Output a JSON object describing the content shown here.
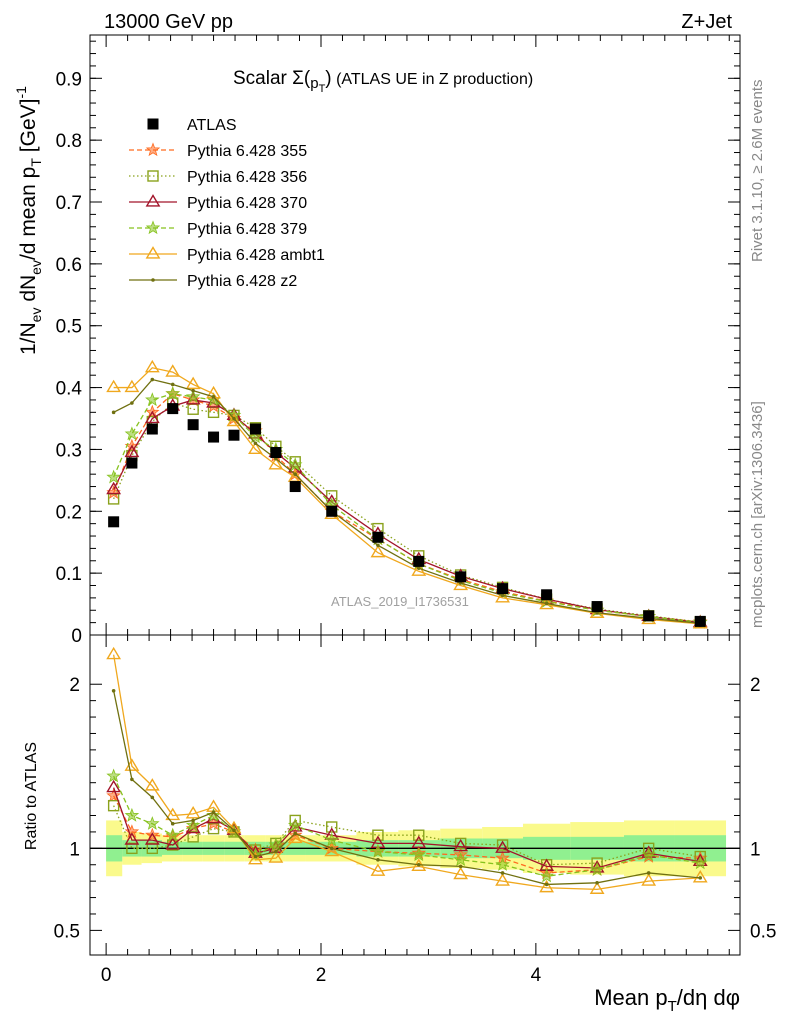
{
  "header": {
    "left": "13000 GeV pp",
    "right": "Z+Jet"
  },
  "side_texts": {
    "rivet": "Rivet 3.1.10, ≥ 2.6M events",
    "mcplots": "mcplots.cern.ch [arXiv:1306.3436]"
  },
  "watermark": "ATLAS_2019_I1736531",
  "chart_data": [
    {
      "type": "scatter",
      "title": "Scalar Σ(p_T) (ATLAS UE in Z production)",
      "ylabel": "1/N_ev dN_ev/d mean p_T [GeV]^-1",
      "xlim": [
        -0.15,
        5.9
      ],
      "ylim": [
        0,
        0.97
      ],
      "yticks": [
        "0",
        "0.1",
        "0.2",
        "0.3",
        "0.4",
        "0.5",
        "0.6",
        "0.7",
        "0.8",
        "0.9"
      ],
      "legend_position": "top-left",
      "x": [
        0.07,
        0.24,
        0.43,
        0.62,
        0.81,
        1.0,
        1.19,
        1.39,
        1.58,
        1.76,
        2.1,
        2.53,
        2.91,
        3.3,
        3.69,
        4.1,
        4.57,
        5.05,
        5.53
      ],
      "series": [
        {
          "name": "ATLAS",
          "color": "#000000",
          "marker": "square",
          "line": "none",
          "values": [
            0.183,
            0.278,
            0.333,
            0.366,
            0.34,
            0.32,
            0.323,
            0.333,
            0.295,
            0.24,
            0.2,
            0.158,
            0.119,
            0.094,
            0.075,
            0.065,
            0.046,
            0.031,
            0.022
          ]
        },
        {
          "name": "Pythia 6.428 355",
          "color": "#ff6a1f",
          "marker": "star",
          "line": "dashed",
          "values": [
            0.23,
            0.305,
            0.36,
            0.39,
            0.38,
            0.37,
            0.35,
            0.33,
            0.29,
            0.26,
            0.2,
            0.155,
            0.115,
            0.09,
            0.07,
            0.055,
            0.04,
            0.03,
            0.021
          ]
        },
        {
          "name": "Pythia 6.428 356",
          "color": "#8aa21c",
          "marker": "square-open",
          "line": "dotted",
          "values": [
            0.22,
            0.29,
            0.345,
            0.375,
            0.365,
            0.36,
            0.355,
            0.335,
            0.305,
            0.28,
            0.225,
            0.172,
            0.128,
            0.097,
            0.077,
            0.058,
            0.042,
            0.031,
            0.021
          ]
        },
        {
          "name": "Pythia 6.428 370",
          "color": "#a2142a",
          "marker": "triangle-open",
          "line": "solid",
          "values": [
            0.235,
            0.295,
            0.35,
            0.37,
            0.38,
            0.375,
            0.355,
            0.325,
            0.295,
            0.27,
            0.215,
            0.163,
            0.122,
            0.095,
            0.075,
            0.058,
            0.041,
            0.03,
            0.02
          ]
        },
        {
          "name": "Pythia 6.428 379",
          "color": "#86c21e",
          "marker": "star",
          "line": "dashed",
          "values": [
            0.255,
            0.325,
            0.38,
            0.39,
            0.385,
            0.38,
            0.355,
            0.32,
            0.3,
            0.275,
            0.21,
            0.155,
            0.115,
            0.088,
            0.068,
            0.054,
            0.04,
            0.03,
            0.02
          ]
        },
        {
          "name": "Pythia 6.428 ambt1",
          "color": "#f0a81e",
          "marker": "triangle-open",
          "line": "solid",
          "values": [
            0.4,
            0.4,
            0.432,
            0.425,
            0.405,
            0.39,
            0.345,
            0.3,
            0.275,
            0.255,
            0.195,
            0.133,
            0.103,
            0.08,
            0.06,
            0.049,
            0.035,
            0.025,
            0.018
          ]
        },
        {
          "name": "Pythia 6.428 z2",
          "color": "#707010",
          "marker": "dot",
          "line": "solid",
          "values": [
            0.36,
            0.375,
            0.413,
            0.405,
            0.395,
            0.385,
            0.35,
            0.31,
            0.285,
            0.26,
            0.2,
            0.145,
            0.108,
            0.084,
            0.064,
            0.051,
            0.036,
            0.027,
            0.019
          ]
        }
      ]
    },
    {
      "type": "line",
      "ylabel": "Ratio to ATLAS",
      "xlabel": "Mean p_T/dη dφ",
      "xlim": [
        -0.15,
        5.9
      ],
      "ylim": [
        0.35,
        2.3
      ],
      "yticks": [
        "0.5",
        "1",
        "2"
      ],
      "xticks": [
        "0",
        "2",
        "4"
      ],
      "reference_line": 1.0,
      "x": [
        0.07,
        0.24,
        0.43,
        0.62,
        0.81,
        1.0,
        1.19,
        1.39,
        1.58,
        1.76,
        2.1,
        2.53,
        2.91,
        3.3,
        3.69,
        4.1,
        4.57,
        5.05,
        5.53
      ],
      "bin_edges": [
        0.0,
        0.15,
        0.33,
        0.52,
        0.71,
        0.9,
        1.1,
        1.29,
        1.48,
        1.67,
        1.86,
        2.33,
        2.72,
        3.11,
        3.5,
        3.88,
        4.32,
        4.82,
        5.29,
        5.77
      ],
      "bands": {
        "stat": {
          "color": "#90f090",
          "half_width": [
            0.08,
            0.05,
            0.05,
            0.04,
            0.04,
            0.04,
            0.04,
            0.04,
            0.04,
            0.04,
            0.04,
            0.05,
            0.05,
            0.06,
            0.06,
            0.07,
            0.07,
            0.08,
            0.08
          ]
        },
        "total": {
          "color": "#fafa8c",
          "half_width": [
            0.17,
            0.1,
            0.09,
            0.08,
            0.08,
            0.08,
            0.08,
            0.08,
            0.08,
            0.08,
            0.08,
            0.1,
            0.11,
            0.12,
            0.13,
            0.15,
            0.16,
            0.17,
            0.17
          ]
        }
      },
      "series": [
        {
          "name": "Pythia 6.428 355",
          "values": [
            1.32,
            1.1,
            1.08,
            1.07,
            1.12,
            1.15,
            1.1,
            0.99,
            1.0,
            1.08,
            1.0,
            0.98,
            0.97,
            0.96,
            0.94,
            0.85,
            0.87,
            0.95,
            0.94
          ]
        },
        {
          "name": "Pythia 6.428 356",
          "values": [
            1.26,
            1.0,
            1.0,
            1.02,
            1.07,
            1.12,
            1.1,
            0.99,
            1.03,
            1.17,
            1.13,
            1.08,
            1.08,
            1.03,
            1.02,
            0.9,
            0.91,
            1.0,
            0.95
          ]
        },
        {
          "name": "Pythia 6.428 370",
          "values": [
            1.37,
            1.05,
            1.05,
            1.02,
            1.12,
            1.18,
            1.11,
            0.97,
            1.0,
            1.13,
            1.08,
            1.03,
            1.03,
            1.01,
            1.0,
            0.89,
            0.88,
            0.97,
            0.92
          ]
        },
        {
          "name": "Pythia 6.428 379",
          "values": [
            1.44,
            1.2,
            1.15,
            1.08,
            1.14,
            1.2,
            1.1,
            0.96,
            1.02,
            1.14,
            1.05,
            0.98,
            0.96,
            0.93,
            0.9,
            0.83,
            0.87,
            0.96,
            0.91
          ]
        },
        {
          "name": "Pythia 6.428 ambt1",
          "values": [
            2.18,
            1.5,
            1.38,
            1.2,
            1.21,
            1.25,
            1.12,
            0.93,
            0.94,
            1.06,
            0.98,
            0.86,
            0.89,
            0.84,
            0.8,
            0.76,
            0.75,
            0.8,
            0.82
          ]
        },
        {
          "name": "Pythia 6.428 z2",
          "values": [
            1.96,
            1.42,
            1.31,
            1.15,
            1.17,
            1.22,
            1.11,
            0.95,
            0.98,
            1.09,
            1.0,
            0.93,
            0.9,
            0.89,
            0.85,
            0.78,
            0.79,
            0.85,
            0.82
          ]
        }
      ]
    }
  ]
}
